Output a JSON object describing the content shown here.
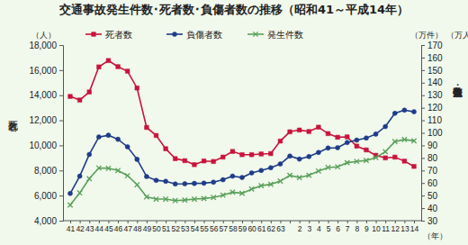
{
  "chart_data": {
    "type": "line",
    "title": "交通事故発生件数･死者数･負傷者数の推移（昭和41～平成14年）",
    "xlabel": "（年）",
    "ylabel": "死者数",
    "y_unit": "（人）",
    "y2label": "発生件数・負傷者数",
    "y2_units": [
      "（万件）",
      "（万人）"
    ],
    "categories": [
      "41",
      "42",
      "43",
      "44",
      "45",
      "46",
      "47",
      "48",
      "49",
      "50",
      "51",
      "52",
      "53",
      "54",
      "55",
      "56",
      "57",
      "58",
      "59",
      "60",
      "61",
      "62",
      "63",
      null,
      "2",
      "3",
      "4",
      "5",
      "6",
      "7",
      "8",
      "9",
      "10",
      "11",
      "12",
      "13",
      "14"
    ],
    "ylim": [
      4000,
      18000
    ],
    "yticks": [
      {
        "value": 4000,
        "label": "4,000"
      },
      {
        "value": 6000,
        "label": "6,000"
      },
      {
        "value": 8000,
        "label": "8,000"
      },
      {
        "value": 10000,
        "label": "10,000"
      },
      {
        "value": 12000,
        "label": "12,000"
      },
      {
        "value": 14000,
        "label": "14,000"
      },
      {
        "value": 16000,
        "label": "16,000"
      },
      {
        "value": 18000,
        "label": "18,000"
      }
    ],
    "y2lim": [
      30,
      170
    ],
    "y2ticks": [
      30,
      40,
      50,
      60,
      70,
      80,
      90,
      100,
      110,
      120,
      130,
      140,
      150,
      160,
      170
    ],
    "grid": false,
    "legend": "top",
    "series": [
      {
        "name": "死者数",
        "color": "#c8143c",
        "marker": "square",
        "values": [
          13904,
          13618,
          14256,
          16257,
          16765,
          16278,
          15918,
          14574,
          11432,
          10792,
          9734,
          8945,
          8783,
          8466,
          8760,
          8719,
          9073,
          9520,
          9262,
          9261,
          9317,
          9347,
          10344,
          11086,
          11227,
          11109,
          11452,
          10942,
          10649,
          10679,
          9942,
          9640,
          9211,
          9006,
          9066,
          8747,
          8326
        ]
      },
      {
        "name": "負傷者数",
        "color": "#1f3c88",
        "marker": "circle",
        "axis": "y2",
        "values": [
          51.7,
          65.5,
          82.8,
          96.7,
          98.1,
          94.9,
          88.9,
          78.9,
          65.2,
          62.2,
          61.4,
          59.3,
          59.4,
          59.7,
          59.9,
          60.7,
          62.6,
          65.5,
          64.4,
          68.1,
          70.0,
          72.2,
          75.2,
          81.5,
          79.1,
          81.1,
          84.4,
          87.9,
          88.2,
          92.3,
          94.2,
          95.9,
          99.0,
          105.0,
          115.6,
          118.1,
          116.8
        ]
      },
      {
        "name": "発生件数",
        "color": "#5aa05a",
        "marker": "x",
        "axis": "y2",
        "values": [
          42.5,
          52.1,
          63.5,
          72.0,
          71.8,
          70.0,
          65.9,
          58.7,
          49.0,
          47.2,
          47.2,
          46.0,
          46.4,
          47.2,
          47.7,
          48.5,
          50.3,
          52.7,
          51.8,
          55.2,
          57.9,
          59.0,
          61.5,
          66.1,
          64.3,
          66.2,
          69.5,
          72.4,
          72.9,
          76.2,
          77.2,
          78.0,
          80.3,
          85.0,
          93.1,
          94.7,
          93.6
        ]
      }
    ]
  }
}
